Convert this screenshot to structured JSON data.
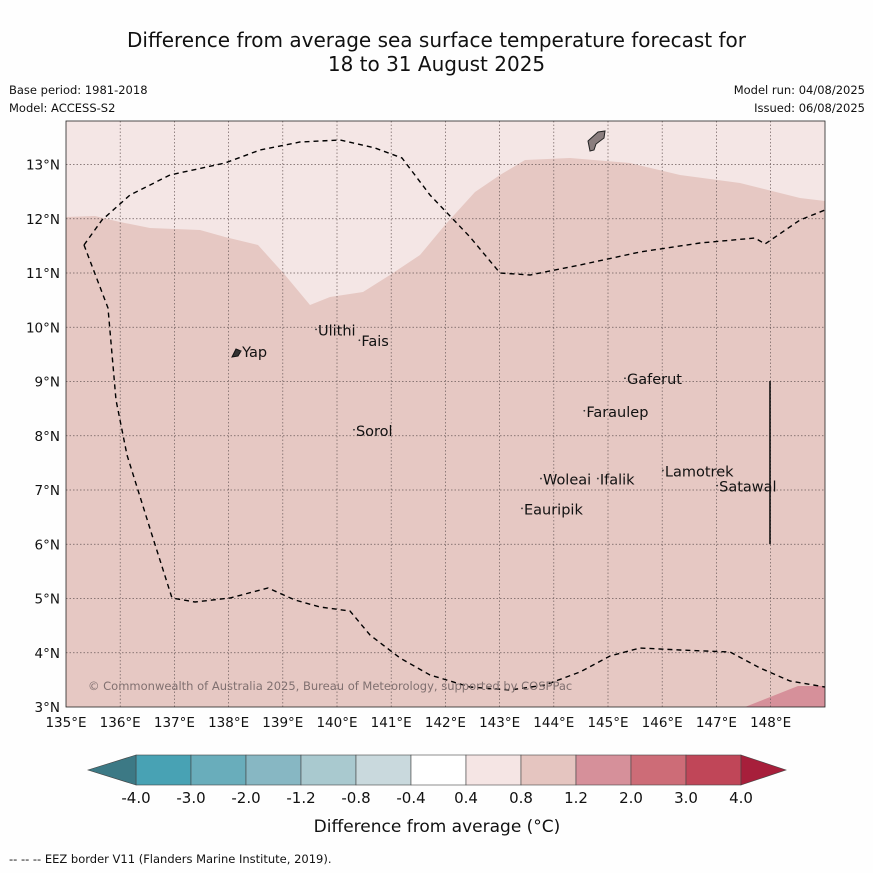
{
  "title": {
    "line1": "Difference from average sea surface temperature forecast for",
    "line2": "18 to 31 August 2025"
  },
  "meta": {
    "base_period": "Base period: 1981-2018",
    "model": "Model: ACCESS-S2",
    "model_run": "Model run: 04/08/2025",
    "issued": "Issued: 06/08/2025"
  },
  "map": {
    "lon_range": [
      135,
      149
    ],
    "lat_range": [
      3,
      13.8
    ],
    "lon_ticks": [
      "135°E",
      "136°E",
      "137°E",
      "138°E",
      "139°E",
      "140°E",
      "141°E",
      "142°E",
      "143°E",
      "144°E",
      "145°E",
      "146°E",
      "147°E",
      "148°E"
    ],
    "lat_ticks": [
      "3°N",
      "4°N",
      "5°N",
      "6°N",
      "7°N",
      "8°N",
      "9°N",
      "10°N",
      "11°N",
      "12°N",
      "13°N"
    ],
    "copyright": "© Commonwealth of Australia 2025, Bureau of Meteorology, supported by COSPPac",
    "places": [
      {
        "name": "Yap",
        "lon": 138.25,
        "lat": 9.45
      },
      {
        "name": "Ulithi",
        "lon": 139.65,
        "lat": 9.85
      },
      {
        "name": "Fais",
        "lon": 140.45,
        "lat": 9.65
      },
      {
        "name": "Sorol",
        "lon": 140.35,
        "lat": 8.0
      },
      {
        "name": "Gaferut",
        "lon": 145.35,
        "lat": 8.95
      },
      {
        "name": "Faraulep",
        "lon": 144.6,
        "lat": 8.35
      },
      {
        "name": "Woleai",
        "lon": 143.8,
        "lat": 7.1
      },
      {
        "name": "Ifalik",
        "lon": 144.85,
        "lat": 7.1
      },
      {
        "name": "Lamotrek",
        "lon": 146.05,
        "lat": 7.25
      },
      {
        "name": "Satawal",
        "lon": 147.05,
        "lat": 6.97
      },
      {
        "name": "Eauripik",
        "lon": 143.45,
        "lat": 6.55
      }
    ],
    "fields": {
      "background_class": "0.4 to 0.8",
      "main_class": "0.8 to 1.2",
      "corner_class": "1.2 to 2.0"
    }
  },
  "colorbar": {
    "ticks": [
      "-4.0",
      "-3.0",
      "-2.0",
      "-1.2",
      "-0.8",
      "-0.4",
      "0.4",
      "0.8",
      "1.2",
      "2.0",
      "3.0",
      "4.0"
    ],
    "colors": [
      "#48a2b4",
      "#69adbb",
      "#87b7c3",
      "#a9c9cf",
      "#c9d9dd",
      "#ffffff",
      "#f5e5e4",
      "#e5c5c0",
      "#d6909a",
      "#cd6c77",
      "#c04658"
    ],
    "under_color": "#3c7985",
    "over_color": "#a71f3b",
    "label": "Difference from average (°C)"
  },
  "footer": "--  --  -- EEZ border V11 (Flanders Marine Institute, 2019)."
}
